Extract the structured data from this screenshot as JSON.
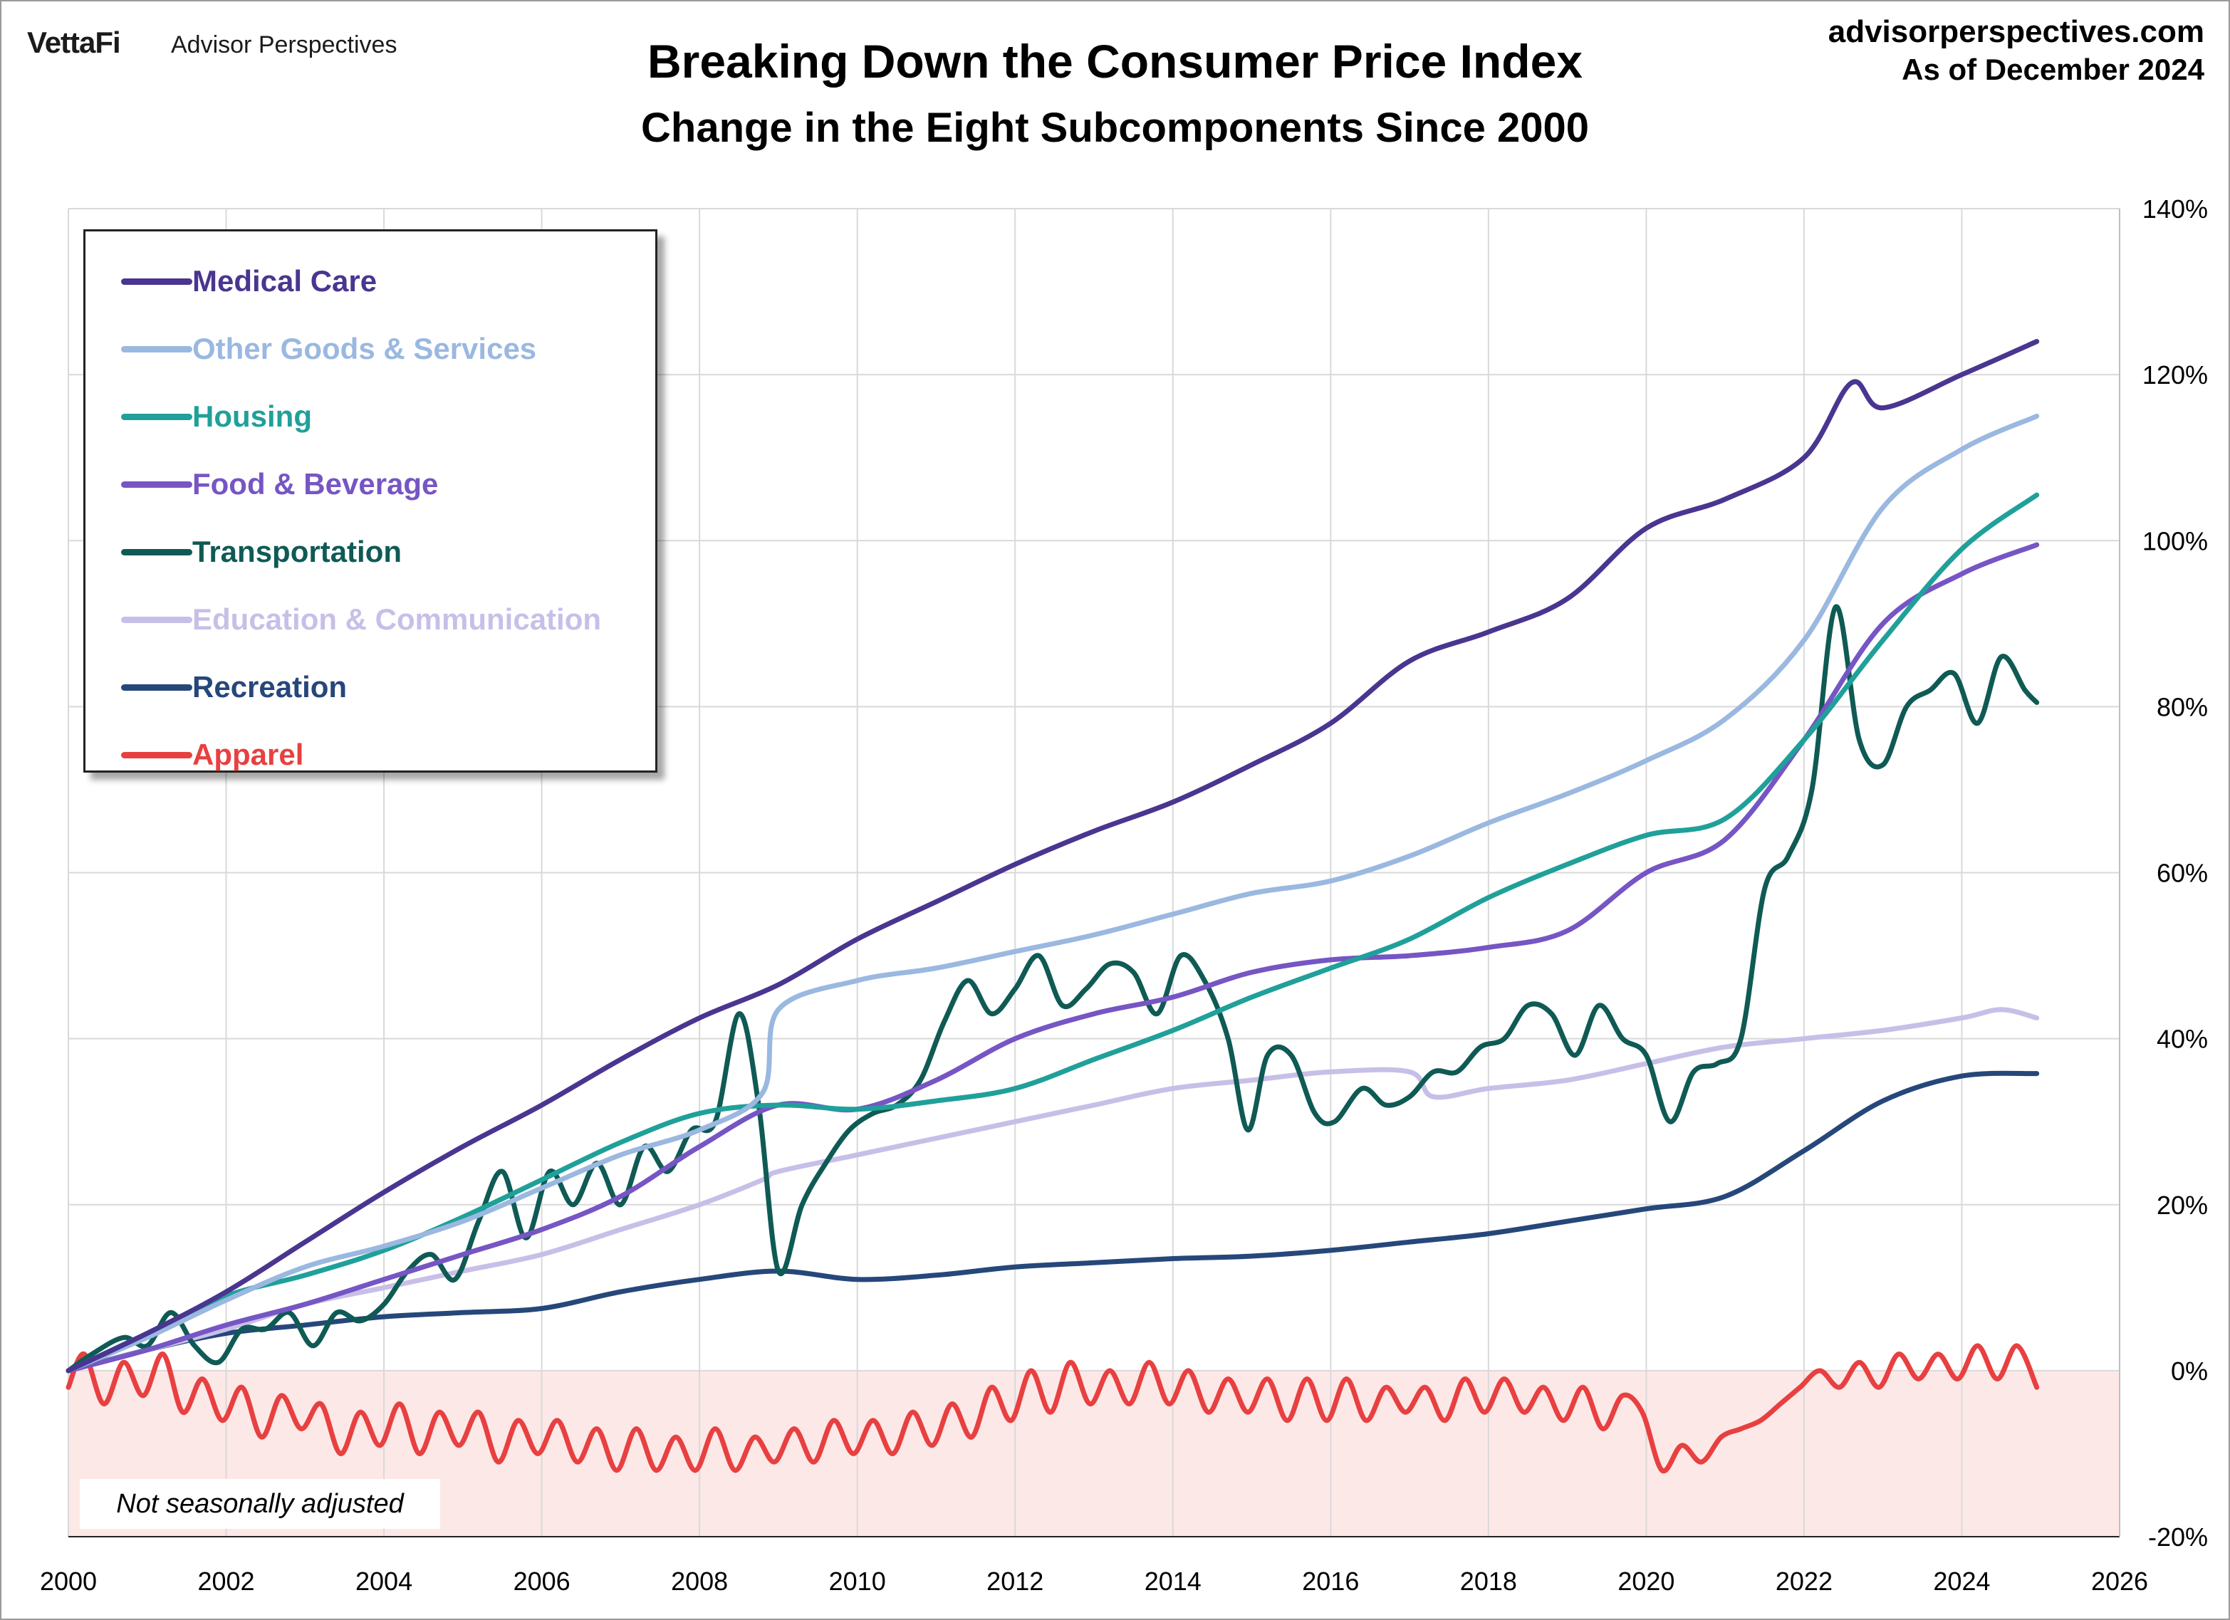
{
  "header": {
    "brand": "VettaFi",
    "brand_sub": "Advisor Perspectives",
    "site": "advisorperspectives.com",
    "as_of": "As of December 2024"
  },
  "note": "Not seasonally adjusted",
  "chart_data": {
    "type": "line",
    "title": "Breaking Down the Consumer Price Index",
    "subtitle": "Change in the Eight Subcomponents Since 2000",
    "x_range": [
      2000,
      2026
    ],
    "x_ticks": [
      "2000",
      "2002",
      "2004",
      "2006",
      "2008",
      "2010",
      "2012",
      "2014",
      "2016",
      "2018",
      "2020",
      "2022",
      "2024",
      "2026"
    ],
    "y_range": [
      -20,
      140
    ],
    "y_ticks": [
      "-20%",
      "0%",
      "20%",
      "40%",
      "60%",
      "80%",
      "100%",
      "120%",
      "140%"
    ],
    "y_axis_side": "right",
    "grid": true,
    "legend_position": "top-left",
    "shaded_region": {
      "from": -20,
      "to": 0,
      "color": "#fde8e8"
    },
    "series": [
      {
        "name": "Medical Care",
        "color": "#4a3590",
        "x": [
          2000,
          2001,
          2002,
          2003,
          2004,
          2005,
          2006,
          2007,
          2008,
          2009,
          2010,
          2011,
          2012,
          2013,
          2014,
          2015,
          2016,
          2017,
          2018,
          2019,
          2020,
          2021,
          2022,
          2022.6,
          2023,
          2024,
          2024.95
        ],
        "y": [
          0,
          4.5,
          9.5,
          15.5,
          21.5,
          27,
          32,
          37.5,
          42.5,
          46.5,
          52,
          56.5,
          61,
          65,
          68.5,
          73,
          78,
          85.5,
          89,
          93,
          101.5,
          105,
          110,
          119,
          116,
          120,
          124
        ]
      },
      {
        "name": "Other Goods & Services",
        "color": "#9ab8e0",
        "x": [
          2000,
          2001,
          2002,
          2003,
          2004,
          2005,
          2006,
          2007,
          2008,
          2008.8,
          2009,
          2010,
          2011,
          2012,
          2013,
          2014,
          2015,
          2016,
          2017,
          2018,
          2019,
          2020,
          2021,
          2022,
          2023,
          2024,
          2024.95
        ],
        "y": [
          0,
          4,
          8.5,
          12.5,
          15,
          18,
          22,
          26,
          29,
          33.5,
          43.5,
          47,
          48.5,
          50.5,
          52.5,
          55,
          57.5,
          59,
          62,
          66,
          69.5,
          73.5,
          78.5,
          88,
          104,
          111,
          115
        ]
      },
      {
        "name": "Housing",
        "color": "#20a09a",
        "x": [
          2000,
          2001,
          2002,
          2003,
          2004,
          2005,
          2006,
          2007,
          2008,
          2009,
          2010,
          2011,
          2012,
          2013,
          2014,
          2015,
          2016,
          2017,
          2018,
          2019,
          2020,
          2021,
          2022,
          2023,
          2024,
          2024.95
        ],
        "y": [
          0,
          4.5,
          9,
          11.5,
          14.5,
          18.5,
          23,
          27.5,
          31,
          32,
          31.5,
          32.5,
          34,
          37.5,
          41,
          45,
          48.5,
          52,
          57,
          61,
          64.5,
          66.5,
          76,
          88,
          99,
          105.5
        ]
      },
      {
        "name": "Food & Beverage",
        "color": "#7655c4",
        "x": [
          2000,
          2001,
          2002,
          2003,
          2004,
          2005,
          2006,
          2007,
          2008,
          2009,
          2010,
          2011,
          2012,
          2013,
          2014,
          2015,
          2016,
          2017,
          2018,
          2019,
          2020,
          2021,
          2022,
          2023,
          2024,
          2024.95
        ],
        "y": [
          0,
          2.5,
          5.5,
          8,
          11,
          14,
          17,
          21,
          27,
          32,
          31.5,
          35,
          40,
          43,
          45,
          48,
          49.5,
          50,
          51,
          53,
          60,
          64,
          76,
          90,
          96,
          99.5
        ]
      },
      {
        "name": "Transportation",
        "color": "#0f5a55",
        "x": [
          2000,
          2000.3,
          2000.7,
          2001,
          2001.3,
          2001.6,
          2001.9,
          2002.2,
          2002.5,
          2002.8,
          2003.1,
          2003.4,
          2003.7,
          2004,
          2004.3,
          2004.6,
          2004.9,
          2005.2,
          2005.5,
          2005.8,
          2006.1,
          2006.4,
          2006.7,
          2007,
          2007.3,
          2007.6,
          2007.9,
          2008.2,
          2008.5,
          2008.75,
          2009,
          2009.3,
          2009.6,
          2009.9,
          2010.2,
          2010.5,
          2010.8,
          2011.1,
          2011.4,
          2011.7,
          2012,
          2012.3,
          2012.6,
          2012.9,
          2013.2,
          2013.5,
          2013.8,
          2014.1,
          2014.4,
          2014.7,
          2014.95,
          2015.2,
          2015.5,
          2015.8,
          2016.05,
          2016.4,
          2016.7,
          2017,
          2017.3,
          2017.6,
          2017.9,
          2018.2,
          2018.5,
          2018.8,
          2019.1,
          2019.4,
          2019.7,
          2020,
          2020.3,
          2020.6,
          2020.9,
          2021.2,
          2021.5,
          2021.8,
          2022.1,
          2022.4,
          2022.7,
          2023,
          2023.3,
          2023.6,
          2023.9,
          2024.2,
          2024.5,
          2024.8,
          2024.95
        ],
        "y": [
          0,
          2,
          4,
          3,
          7,
          3,
          1,
          5,
          5,
          7,
          3,
          7,
          6,
          8,
          12,
          14,
          11,
          18,
          24,
          16,
          24,
          20,
          25,
          20,
          27,
          24,
          29,
          30,
          43,
          32,
          12,
          20,
          25,
          29,
          31,
          32,
          35,
          42,
          47,
          43,
          46,
          50,
          44,
          46,
          49,
          48,
          43,
          50,
          47,
          40,
          29,
          38,
          38,
          31,
          30,
          34,
          32,
          33,
          36,
          36,
          39,
          40,
          44,
          43,
          38,
          44,
          40,
          38,
          30,
          36,
          37,
          40,
          58,
          62,
          70,
          92,
          76,
          73,
          80,
          82,
          84,
          78,
          86,
          82,
          80.5
        ]
      },
      {
        "name": "Education & Communication",
        "color": "#c8bfe8",
        "x": [
          2000,
          2001,
          2002,
          2003,
          2004,
          2005,
          2006,
          2007,
          2008,
          2008.8,
          2009,
          2010,
          2011,
          2012,
          2013,
          2014,
          2015,
          2016,
          2017,
          2017.3,
          2018,
          2019,
          2020,
          2021,
          2022,
          2023,
          2024,
          2024.5,
          2024.95
        ],
        "y": [
          0,
          2.5,
          5,
          8,
          10,
          12,
          14,
          17,
          20,
          23,
          24,
          26,
          28,
          30,
          32,
          34,
          35,
          36,
          36,
          33,
          34,
          35,
          37,
          39,
          40,
          41,
          42.5,
          43.5,
          42.5
        ]
      },
      {
        "name": "Recreation",
        "color": "#26477a",
        "x": [
          2000,
          2001,
          2002,
          2003,
          2004,
          2005,
          2006,
          2007,
          2008,
          2009,
          2010,
          2011,
          2012,
          2013,
          2014,
          2015,
          2016,
          2017,
          2018,
          2019,
          2020,
          2021,
          2022,
          2023,
          2024,
          2024.95
        ],
        "y": [
          0,
          2.5,
          4.5,
          5.5,
          6.5,
          7,
          7.5,
          9.5,
          11,
          12,
          11,
          11.5,
          12.5,
          13,
          13.5,
          13.8,
          14.5,
          15.5,
          16.5,
          18,
          19.5,
          21,
          26.5,
          32.5,
          35.5,
          35.8
        ]
      },
      {
        "name": "Apparel",
        "color": "#e84040",
        "x": [
          2000,
          2000.2,
          2000.45,
          2000.7,
          2000.95,
          2001.2,
          2001.45,
          2001.7,
          2001.95,
          2002.2,
          2002.45,
          2002.7,
          2002.95,
          2003.2,
          2003.45,
          2003.7,
          2003.95,
          2004.2,
          2004.45,
          2004.7,
          2004.95,
          2005.2,
          2005.45,
          2005.7,
          2005.95,
          2006.2,
          2006.45,
          2006.7,
          2006.95,
          2007.2,
          2007.45,
          2007.7,
          2007.95,
          2008.2,
          2008.45,
          2008.7,
          2008.95,
          2009.2,
          2009.45,
          2009.7,
          2009.95,
          2010.2,
          2010.45,
          2010.7,
          2010.95,
          2011.2,
          2011.45,
          2011.7,
          2011.95,
          2012.2,
          2012.45,
          2012.7,
          2012.95,
          2013.2,
          2013.45,
          2013.7,
          2013.95,
          2014.2,
          2014.45,
          2014.7,
          2014.95,
          2015.2,
          2015.45,
          2015.7,
          2015.95,
          2016.2,
          2016.45,
          2016.7,
          2016.95,
          2017.2,
          2017.45,
          2017.7,
          2017.95,
          2018.2,
          2018.45,
          2018.7,
          2018.95,
          2019.2,
          2019.45,
          2019.7,
          2019.95,
          2020.2,
          2020.45,
          2020.7,
          2020.95,
          2021.2,
          2021.45,
          2021.7,
          2021.95,
          2022.2,
          2022.45,
          2022.7,
          2022.95,
          2023.2,
          2023.45,
          2023.7,
          2023.95,
          2024.2,
          2024.45,
          2024.7,
          2024.95
        ],
        "y": [
          -2,
          2,
          -4,
          1,
          -3,
          2,
          -5,
          -1,
          -6,
          -2,
          -8,
          -3,
          -7,
          -4,
          -10,
          -5,
          -9,
          -4,
          -10,
          -5,
          -9,
          -5,
          -11,
          -6,
          -10,
          -6,
          -11,
          -7,
          -12,
          -7,
          -12,
          -8,
          -12,
          -7,
          -12,
          -8,
          -11,
          -7,
          -11,
          -6,
          -10,
          -6,
          -10,
          -5,
          -9,
          -4,
          -8,
          -2,
          -6,
          0,
          -5,
          1,
          -4,
          0,
          -4,
          1,
          -4,
          0,
          -5,
          -1,
          -5,
          -1,
          -6,
          -1,
          -6,
          -1,
          -6,
          -2,
          -5,
          -2,
          -6,
          -1,
          -5,
          -1,
          -5,
          -2,
          -6,
          -2,
          -7,
          -3,
          -5,
          -12,
          -9,
          -11,
          -8,
          -7,
          -6,
          -4,
          -2,
          0,
          -2,
          1,
          -2,
          2,
          -1,
          2,
          -1,
          3,
          -1,
          3,
          -2
        ]
      }
    ]
  }
}
